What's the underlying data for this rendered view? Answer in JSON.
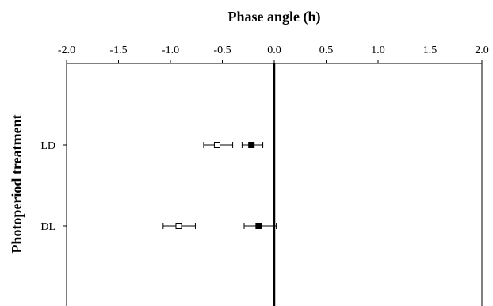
{
  "chart_data": {
    "type": "scatter",
    "title": "Phase angle (h)",
    "xlabel": "",
    "ylabel": "Photoperiod treatment",
    "xlim": [
      -2.0,
      2.0
    ],
    "x_ticks": [
      "-2.0",
      "-1.5",
      "-1.0",
      "-0.5",
      "0.0",
      "0.5",
      "1.0",
      "1.5",
      "2.0"
    ],
    "categories": [
      "LD",
      "DL"
    ],
    "reference_line_x": 0.0,
    "grid": false,
    "series": [
      {
        "marker": "open-square",
        "color": "#ffffff",
        "points": [
          {
            "category": "LD",
            "x": -0.55,
            "err_low": -0.68,
            "err_high": -0.4
          },
          {
            "category": "DL",
            "x": -0.92,
            "err_low": -1.07,
            "err_high": -0.76
          }
        ]
      },
      {
        "marker": "filled-square",
        "color": "#000000",
        "points": [
          {
            "category": "LD",
            "x": -0.22,
            "err_low": -0.31,
            "err_high": -0.11
          },
          {
            "category": "DL",
            "x": -0.15,
            "err_low": -0.29,
            "err_high": 0.02
          }
        ]
      }
    ]
  }
}
